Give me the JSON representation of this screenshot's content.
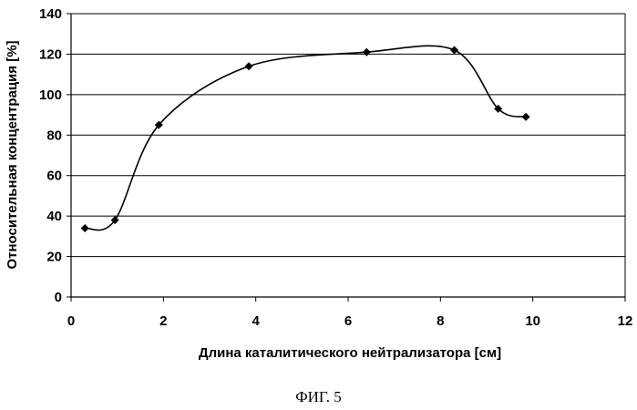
{
  "chart_data": {
    "type": "scatter",
    "title": "",
    "xlabel": "Длина каталитического нейтрализатора [см]",
    "ylabel": "Относительная концентрация [%]",
    "xlim": [
      0,
      12
    ],
    "ylim": [
      0,
      140
    ],
    "xticks": [
      0,
      2,
      4,
      6,
      8,
      10,
      12
    ],
    "yticks": [
      0,
      20,
      40,
      60,
      80,
      100,
      120,
      140
    ],
    "grid": "horizontal",
    "smoothed_line": true,
    "marker": "diamond",
    "line_color": "#000000",
    "x": [
      0.3,
      0.95,
      1.9,
      3.85,
      6.4,
      8.3,
      9.25,
      9.85
    ],
    "y": [
      34,
      38,
      85,
      114,
      121,
      122,
      93,
      89
    ]
  },
  "caption": "ФИГ. 5"
}
